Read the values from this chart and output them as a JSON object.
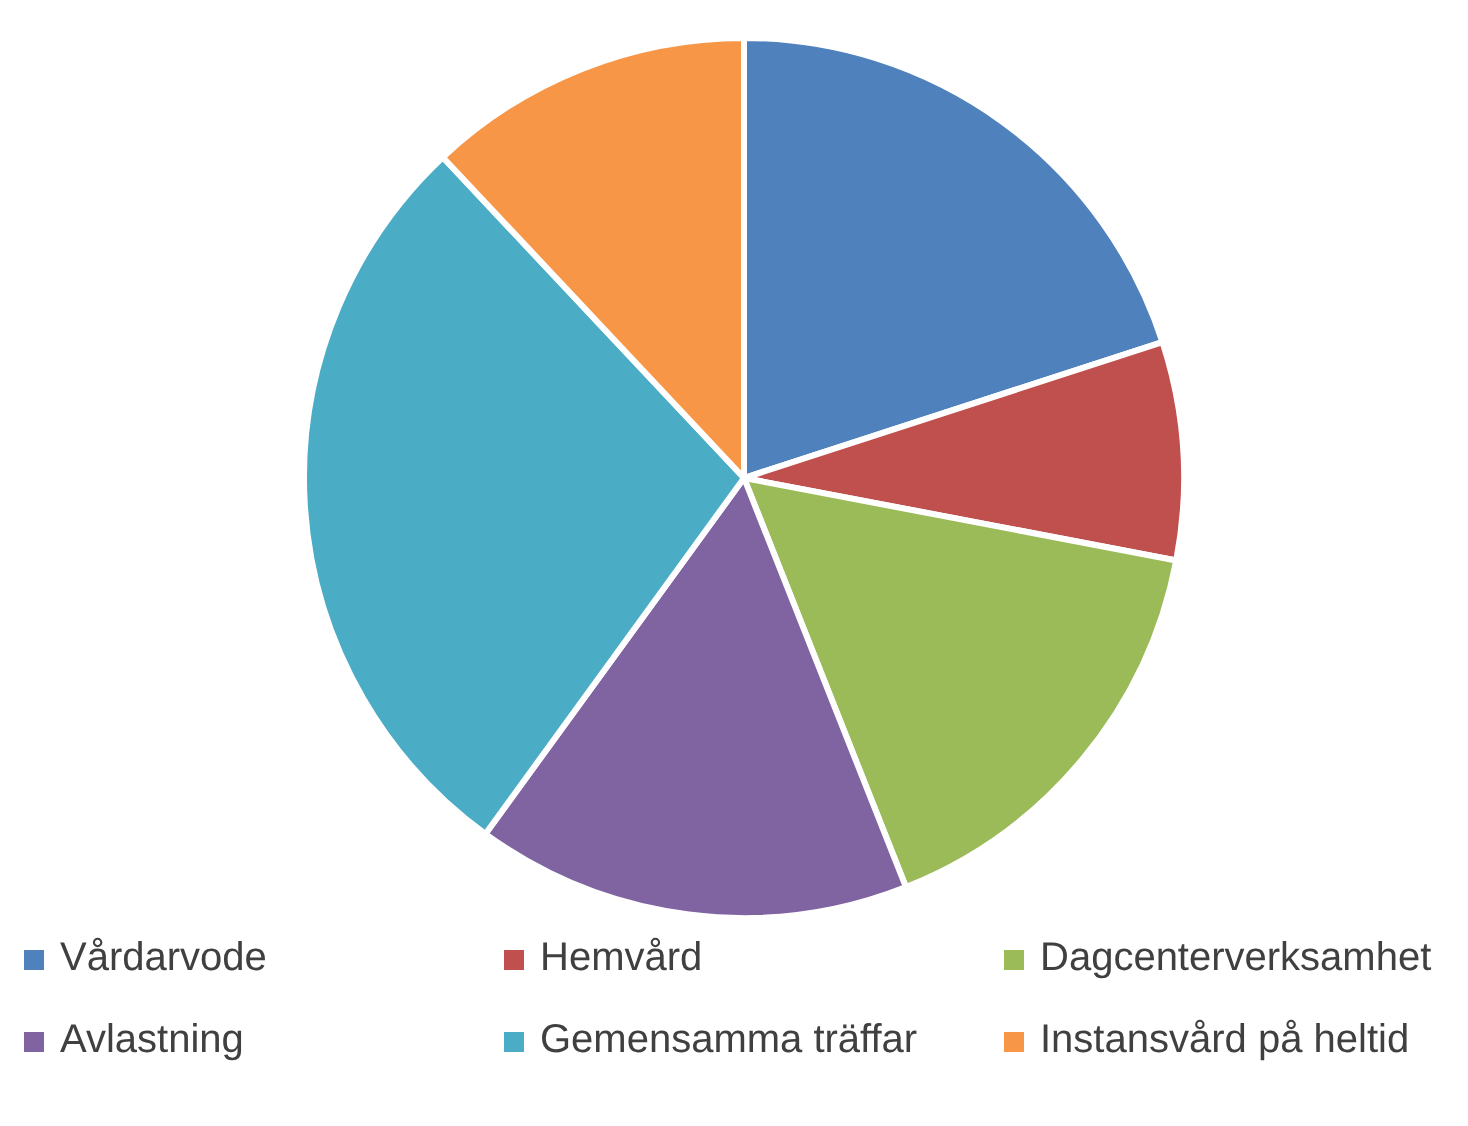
{
  "chart_data": {
    "type": "pie",
    "categories": [
      "Vårdarvode",
      "Hemvård",
      "Dagcenterverksamhet",
      "Avlastning",
      "Gemensamma träffar",
      "Instansvård på heltid"
    ],
    "values": [
      20,
      8,
      16,
      16,
      28,
      12
    ],
    "colors": [
      "#4f81bd",
      "#c0504d",
      "#9bbb59",
      "#8064a2",
      "#4bacc6",
      "#f79646"
    ],
    "legend": "bottom"
  }
}
